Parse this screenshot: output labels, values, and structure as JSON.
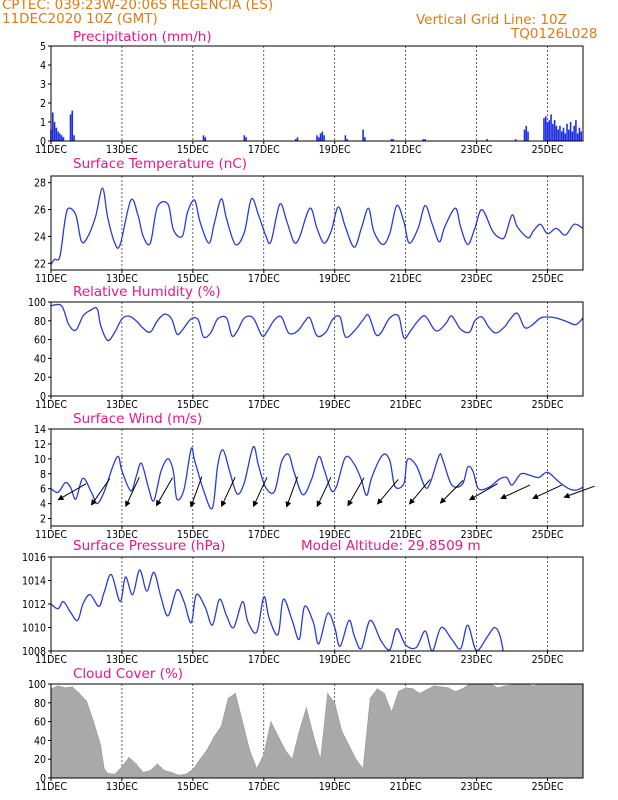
{
  "header": {
    "line1": "CPTEC:   039:23W-20:06S   REGENCIA (ES)",
    "line2": "11DEC2020 10Z (GMT)",
    "grid_note": "Vertical Grid Line: 10Z",
    "model_code": "TQ0126L028"
  },
  "colors": {
    "line": "#2b3bd6",
    "bar": "#1f2fe0",
    "cloud": "#a9a9a9",
    "title": "#e8178a",
    "header": "#e07b12",
    "arrow": "#000000"
  },
  "chart_data": [
    {
      "type": "bar",
      "title": "Precipitation (mm/h)",
      "x_labels": [
        "11DEC",
        "13DEC",
        "15DEC",
        "17DEC",
        "19DEC",
        "21DEC",
        "23DEC",
        "25DEC"
      ],
      "x_label_days": [
        0,
        2,
        4,
        6,
        8,
        10,
        12,
        14
      ],
      "xlim_days": [
        0,
        15
      ],
      "ylim": [
        0,
        5
      ],
      "yticks": [
        0,
        1,
        2,
        3,
        4,
        5
      ],
      "x_days": [
        0.0,
        0.05,
        0.1,
        0.15,
        0.2,
        0.25,
        0.3,
        0.35,
        0.55,
        0.6,
        0.65,
        4.3,
        4.35,
        5.45,
        5.5,
        6.9,
        6.95,
        7.5,
        7.55,
        7.6,
        7.65,
        7.7,
        8.3,
        8.35,
        8.8,
        8.85,
        9.6,
        9.65,
        10.5,
        10.55,
        12.3,
        13.1,
        13.35,
        13.4,
        13.45,
        13.9,
        13.95,
        14.0,
        14.05,
        14.1,
        14.15,
        14.2,
        14.25,
        14.3,
        14.35,
        14.4,
        14.45,
        14.5,
        14.55,
        14.6,
        14.65,
        14.7,
        14.75,
        14.8,
        14.85,
        14.9,
        14.95
      ],
      "values": [
        0.6,
        1.5,
        1.0,
        0.7,
        0.5,
        0.4,
        0.3,
        0.2,
        1.4,
        1.6,
        0.3,
        0.3,
        0.2,
        0.3,
        0.2,
        0.1,
        0.2,
        0.3,
        0.2,
        0.4,
        0.5,
        0.3,
        0.3,
        0.1,
        0.6,
        0.2,
        0.1,
        0.1,
        0.1,
        0.1,
        0.1,
        0.1,
        0.6,
        0.8,
        0.5,
        1.2,
        1.3,
        1.0,
        1.1,
        1.4,
        0.9,
        1.1,
        0.8,
        0.6,
        0.8,
        0.5,
        0.7,
        0.4,
        0.9,
        0.6,
        1.0,
        0.5,
        0.8,
        1.1,
        0.4,
        0.7,
        0.5
      ]
    },
    {
      "type": "line",
      "title": "Surface Temperature (nC)",
      "x_labels": [
        "11DEC",
        "13DEC",
        "15DEC",
        "17DEC",
        "19DEC",
        "21DEC",
        "23DEC",
        "25DEC"
      ],
      "xlim_days": [
        0,
        15
      ],
      "ylim": [
        21.5,
        28.5
      ],
      "yticks": [
        22,
        24,
        26,
        28
      ],
      "x_days": [
        0.0,
        0.1,
        0.25,
        0.4,
        0.5,
        0.7,
        0.85,
        1.0,
        1.25,
        1.45,
        1.6,
        1.8,
        1.95,
        2.25,
        2.45,
        2.6,
        2.8,
        3.0,
        3.3,
        3.45,
        3.7,
        3.85,
        4.05,
        4.2,
        4.45,
        4.6,
        4.8,
        4.95,
        5.2,
        5.45,
        5.65,
        5.85,
        6.05,
        6.2,
        6.45,
        6.65,
        6.85,
        7.0,
        7.3,
        7.5,
        7.7,
        7.9,
        8.1,
        8.3,
        8.55,
        8.75,
        8.95,
        9.1,
        9.35,
        9.55,
        9.75,
        9.95,
        10.1,
        10.35,
        10.55,
        10.75,
        10.95,
        11.1,
        11.4,
        11.55,
        11.75,
        11.95,
        12.15,
        12.45,
        12.65,
        12.8,
        13.0,
        13.15,
        13.45,
        13.6,
        13.8,
        14.0,
        14.25,
        14.5,
        14.75,
        15.0
      ],
      "values": [
        21.9,
        22.3,
        22.5,
        25.3,
        26.1,
        25.6,
        23.7,
        23.8,
        25.4,
        27.6,
        25.4,
        23.5,
        23.4,
        26.7,
        25.6,
        24.0,
        23.5,
        26.2,
        26.4,
        24.5,
        24.0,
        25.8,
        26.7,
        25.1,
        23.5,
        24.9,
        26.8,
        25.3,
        23.4,
        24.3,
        26.8,
        25.6,
        24.1,
        23.6,
        26.4,
        25.1,
        23.6,
        23.9,
        26.1,
        24.6,
        23.5,
        24.4,
        26.2,
        24.7,
        23.2,
        24.6,
        26.1,
        24.4,
        23.4,
        24.2,
        26.3,
        25.1,
        23.5,
        24.6,
        26.3,
        24.9,
        23.6,
        24.7,
        26.1,
        24.7,
        23.4,
        24.6,
        26.0,
        24.4,
        23.9,
        24.0,
        25.6,
        24.7,
        23.9,
        24.4,
        24.9,
        24.2,
        24.6,
        24.1,
        24.9,
        24.6
      ]
    },
    {
      "type": "line",
      "title": "Relative Humidity (%)",
      "x_labels": [
        "11DEC",
        "13DEC",
        "15DEC",
        "17DEC",
        "19DEC",
        "21DEC",
        "23DEC",
        "25DEC"
      ],
      "xlim_days": [
        0,
        15
      ],
      "ylim": [
        0,
        100
      ],
      "yticks": [
        0,
        20,
        40,
        60,
        80,
        100
      ],
      "x_days": [
        0.0,
        0.3,
        0.5,
        0.7,
        0.9,
        1.1,
        1.3,
        1.4,
        1.6,
        1.8,
        2.0,
        2.2,
        2.4,
        2.6,
        2.8,
        3.0,
        3.2,
        3.4,
        3.55,
        3.7,
        3.95,
        4.15,
        4.3,
        4.5,
        4.7,
        4.95,
        5.1,
        5.25,
        5.45,
        5.7,
        5.95,
        6.1,
        6.3,
        6.5,
        6.7,
        6.95,
        7.15,
        7.3,
        7.5,
        7.75,
        7.95,
        8.15,
        8.3,
        8.55,
        8.8,
        8.95,
        9.15,
        9.3,
        9.55,
        9.8,
        9.95,
        10.15,
        10.35,
        10.55,
        10.8,
        10.95,
        11.15,
        11.3,
        11.55,
        11.8,
        11.95,
        12.15,
        12.35,
        12.55,
        12.8,
        12.95,
        13.15,
        13.35,
        13.55,
        13.8,
        14.0,
        14.25,
        14.55,
        14.8,
        15.0
      ],
      "values": [
        96,
        96,
        76,
        70,
        85,
        91,
        93,
        75,
        59,
        68,
        82,
        85,
        80,
        72,
        68,
        80,
        87,
        82,
        66,
        70,
        82,
        81,
        63,
        67,
        82,
        83,
        64,
        69,
        83,
        83,
        64,
        69,
        81,
        84,
        67,
        69,
        79,
        83,
        64,
        68,
        82,
        84,
        63,
        69,
        81,
        86,
        66,
        67,
        83,
        85,
        62,
        70,
        80,
        85,
        71,
        70,
        78,
        85,
        71,
        68,
        80,
        84,
        73,
        67,
        74,
        82,
        88,
        73,
        75,
        83,
        84,
        83,
        79,
        76,
        83
      ]
    },
    {
      "type": "line",
      "title": "Surface Wind (m/s)",
      "x_labels": [
        "11DEC",
        "13DEC",
        "15DEC",
        "17DEC",
        "19DEC",
        "21DEC",
        "23DEC",
        "25DEC"
      ],
      "xlim_days": [
        0,
        15
      ],
      "ylim": [
        1,
        14
      ],
      "yticks": [
        2,
        4,
        6,
        8,
        10,
        12,
        14
      ],
      "x_days": [
        0.0,
        0.2,
        0.4,
        0.55,
        0.7,
        0.9,
        1.15,
        1.3,
        1.5,
        1.75,
        1.9,
        2.0,
        2.25,
        2.4,
        2.55,
        2.75,
        2.9,
        3.1,
        3.3,
        3.45,
        3.55,
        3.75,
        3.95,
        4.05,
        4.3,
        4.55,
        4.7,
        4.85,
        5.05,
        5.25,
        5.45,
        5.7,
        5.85,
        6.05,
        6.3,
        6.5,
        6.7,
        6.85,
        7.1,
        7.35,
        7.55,
        7.7,
        7.9,
        8.05,
        8.3,
        8.55,
        8.75,
        8.9,
        9.05,
        9.35,
        9.55,
        9.7,
        9.95,
        10.05,
        10.3,
        10.55,
        10.7,
        10.95,
        11.05,
        11.3,
        11.6,
        11.75,
        11.9,
        12.05,
        12.35,
        12.65,
        12.85,
        13.0,
        13.25,
        13.5,
        13.75,
        14.0,
        14.3,
        14.6,
        14.8,
        15.0
      ],
      "values": [
        6.0,
        5.5,
        6.8,
        6.2,
        4.6,
        7.4,
        5.4,
        4.0,
        5.6,
        9.1,
        10.3,
        8.4,
        5.7,
        7.6,
        9.4,
        6.1,
        4.4,
        8.3,
        10.0,
        8.3,
        4.6,
        5.9,
        11.3,
        9.8,
        5.8,
        3.4,
        9.1,
        11.2,
        8.1,
        5.3,
        6.8,
        11.6,
        9.1,
        6.2,
        5.6,
        9.6,
        10.6,
        8.3,
        5.2,
        7.3,
        10.3,
        8.6,
        5.8,
        6.3,
        10.2,
        9.3,
        7.2,
        5.1,
        7.6,
        10.5,
        9.8,
        6.3,
        6.7,
        9.9,
        9.1,
        6.2,
        6.9,
        10.5,
        9.8,
        6.5,
        6.6,
        8.9,
        8.3,
        6.0,
        6.2,
        7.3,
        7.5,
        6.5,
        8.0,
        7.8,
        7.5,
        8.2,
        7.0,
        6.0,
        5.8,
        6.2
      ]
    },
    {
      "type": "line",
      "title": "Surface Pressure (hPa)",
      "annotation": "Model Altitude: 29.8509  m",
      "x_labels": [
        "11DEC",
        "13DEC",
        "15DEC",
        "17DEC",
        "19DEC",
        "21DEC",
        "23DEC",
        "25DEC"
      ],
      "xlim_days": [
        0,
        15
      ],
      "ylim": [
        1008,
        1016
      ],
      "yticks": [
        1008,
        1010,
        1012,
        1014,
        1016
      ],
      "x_days": [
        0.0,
        0.2,
        0.35,
        0.55,
        0.75,
        0.9,
        1.1,
        1.35,
        1.5,
        1.7,
        1.95,
        2.1,
        2.3,
        2.5,
        2.7,
        2.9,
        3.1,
        3.3,
        3.55,
        3.75,
        3.95,
        4.1,
        4.35,
        4.55,
        4.75,
        4.95,
        5.15,
        5.4,
        5.55,
        5.8,
        6.0,
        6.15,
        6.4,
        6.55,
        6.8,
        7.0,
        7.15,
        7.4,
        7.55,
        7.8,
        8.0,
        8.15,
        8.4,
        8.55,
        8.75,
        9.0,
        9.3,
        9.55,
        9.75,
        10.0,
        10.3,
        10.55,
        10.75,
        11.0,
        11.3,
        11.55,
        11.75,
        12.0,
        12.3,
        12.5,
        12.65,
        12.75
      ],
      "values": [
        1012.0,
        1011.6,
        1012.2,
        1011.3,
        1010.6,
        1012.0,
        1012.8,
        1011.8,
        1013.0,
        1014.5,
        1012.2,
        1014.3,
        1012.8,
        1014.9,
        1013.1,
        1014.7,
        1012.6,
        1011.0,
        1013.2,
        1012.2,
        1010.4,
        1012.8,
        1011.7,
        1010.2,
        1012.4,
        1011.0,
        1010.0,
        1012.2,
        1010.5,
        1009.6,
        1012.6,
        1010.8,
        1009.4,
        1012.4,
        1010.6,
        1009.0,
        1011.8,
        1010.4,
        1008.6,
        1011.2,
        1010.0,
        1008.4,
        1010.6,
        1009.3,
        1008.2,
        1010.6,
        1008.9,
        1008.1,
        1009.9,
        1008.5,
        1008.3,
        1009.7,
        1008.0,
        1010.0,
        1009.0,
        1008.2,
        1010.2,
        1008.0,
        1009.2,
        1010.0,
        1009.4,
        1008.0
      ]
    },
    {
      "type": "area",
      "title": "Cloud Cover (%)",
      "x_labels": [
        "11DEC",
        "13DEC",
        "15DEC",
        "17DEC",
        "19DEC",
        "21DEC",
        "23DEC",
        "25DEC"
      ],
      "xlim_days": [
        0,
        15
      ],
      "ylim": [
        0,
        100
      ],
      "yticks": [
        0,
        20,
        40,
        60,
        80,
        100
      ],
      "x_days": [
        0.0,
        0.2,
        0.4,
        0.6,
        0.8,
        1.0,
        1.2,
        1.4,
        1.5,
        1.6,
        1.8,
        2.0,
        2.2,
        2.4,
        2.6,
        2.8,
        3.0,
        3.2,
        3.4,
        3.6,
        3.8,
        4.0,
        4.2,
        4.4,
        4.6,
        4.8,
        5.0,
        5.2,
        5.4,
        5.6,
        5.8,
        6.0,
        6.2,
        6.4,
        6.6,
        6.8,
        7.0,
        7.2,
        7.4,
        7.6,
        7.8,
        8.0,
        8.2,
        8.4,
        8.6,
        8.8,
        9.0,
        9.2,
        9.4,
        9.6,
        9.8,
        10.0,
        10.2,
        10.4,
        10.6,
        10.8,
        11.0,
        11.2,
        11.4,
        11.6,
        11.8,
        12.0,
        12.2,
        12.4,
        12.6,
        12.8,
        13.0,
        13.2,
        13.4,
        13.6,
        13.8,
        14.0,
        14.2,
        14.4,
        14.6,
        14.8,
        15.0
      ],
      "values": [
        95,
        98,
        96,
        97,
        90,
        82,
        60,
        35,
        10,
        5,
        4,
        12,
        22,
        15,
        6,
        8,
        15,
        8,
        6,
        3,
        4,
        9,
        20,
        30,
        44,
        55,
        85,
        90,
        60,
        30,
        10,
        25,
        60,
        45,
        30,
        20,
        50,
        75,
        45,
        20,
        90,
        80,
        50,
        35,
        20,
        10,
        85,
        95,
        90,
        70,
        92,
        96,
        95,
        90,
        94,
        98,
        97,
        96,
        92,
        95,
        100,
        100,
        100,
        100,
        96,
        98,
        99,
        100,
        100,
        98,
        100,
        100,
        100,
        100,
        99,
        100,
        100
      ]
    }
  ],
  "wind_arrows": {
    "x_days": [
      0.6,
      1.4,
      2.3,
      3.2,
      4.1,
      5.0,
      5.9,
      6.8,
      7.7,
      8.6,
      9.5,
      10.4,
      11.3,
      12.2,
      13.1,
      14.0,
      14.9
    ],
    "dir_deg": [
      210,
      235,
      245,
      240,
      250,
      245,
      245,
      250,
      245,
      240,
      230,
      230,
      225,
      210,
      205,
      205,
      200
    ]
  }
}
